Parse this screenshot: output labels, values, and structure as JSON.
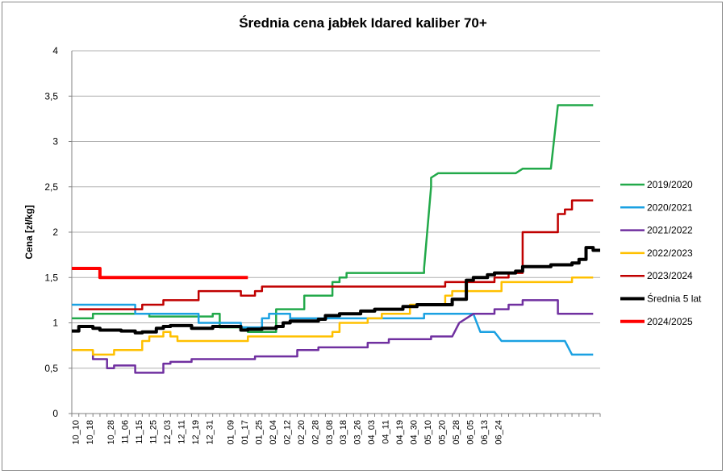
{
  "chart_data": {
    "type": "line",
    "title": "Średnia cena jabłek Idared kaliber 70+",
    "ylabel": "Cena [zł/kg]",
    "xlabel": "",
    "ylim": [
      0,
      4
    ],
    "yticks": [
      0,
      0.5,
      1,
      1.5,
      2,
      2.5,
      3,
      3.5,
      4
    ],
    "ytick_labels": [
      "0",
      "0,5",
      "1",
      "1,5",
      "2",
      "2,5",
      "3",
      "3,5",
      "4"
    ],
    "grid": "horizontal",
    "legend_position": "right",
    "x_count": 75,
    "xtick_labels": [
      "10_10",
      "10_18",
      "10_28",
      "11_06",
      "11_15",
      "11_25",
      "12_03",
      "12_11",
      "12_19",
      "12_31",
      "01_09",
      "01_17",
      "01_25",
      "02_04",
      "02_12",
      "02_20",
      "02_28",
      "03_08",
      "03_18",
      "03_26",
      "04_03",
      "04_11",
      "04_19",
      "04_30",
      "05_10",
      "05_20",
      "05_28",
      "06_05",
      "06_13",
      "06_24"
    ],
    "xtick_positions": [
      0,
      2,
      5,
      7,
      9,
      11,
      13,
      15,
      17,
      19,
      22,
      24,
      26,
      28,
      30,
      32,
      34,
      36,
      38,
      40,
      42,
      44,
      46,
      48,
      50,
      52,
      54,
      56,
      58,
      60
    ],
    "series": [
      {
        "name": "2019/2020",
        "color": "#22a94a",
        "width": 2.5,
        "points": [
          [
            0,
            1.05
          ],
          [
            3,
            1.05
          ],
          [
            3,
            1.1
          ],
          [
            11,
            1.1
          ],
          [
            11,
            1.07
          ],
          [
            20,
            1.07
          ],
          [
            20,
            1.1
          ],
          [
            21,
            1.1
          ],
          [
            21,
            0.95
          ],
          [
            25,
            0.95
          ],
          [
            25,
            0.9
          ],
          [
            29,
            0.9
          ],
          [
            29,
            1.15
          ],
          [
            33,
            1.15
          ],
          [
            33,
            1.3
          ],
          [
            37,
            1.3
          ],
          [
            37,
            1.45
          ],
          [
            38,
            1.45
          ],
          [
            38,
            1.5
          ],
          [
            39,
            1.5
          ],
          [
            39,
            1.55
          ],
          [
            50,
            1.55
          ],
          [
            50,
            1.6
          ],
          [
            51,
            2.5
          ],
          [
            51,
            2.6
          ],
          [
            52,
            2.65
          ],
          [
            63,
            2.65
          ],
          [
            64,
            2.7
          ],
          [
            68,
            2.7
          ],
          [
            69,
            3.4
          ],
          [
            74,
            3.4
          ]
        ]
      },
      {
        "name": "2020/2021",
        "color": "#1ba1e2",
        "width": 2.5,
        "points": [
          [
            0,
            1.2
          ],
          [
            9,
            1.2
          ],
          [
            9,
            1.1
          ],
          [
            18,
            1.1
          ],
          [
            18,
            1.0
          ],
          [
            24,
            1.0
          ],
          [
            24,
            0.95
          ],
          [
            27,
            0.95
          ],
          [
            27,
            1.05
          ],
          [
            28,
            1.05
          ],
          [
            28,
            1.1
          ],
          [
            31,
            1.1
          ],
          [
            31,
            1.05
          ],
          [
            50,
            1.05
          ],
          [
            50,
            1.1
          ],
          [
            57,
            1.1
          ],
          [
            58,
            0.9
          ],
          [
            60,
            0.9
          ],
          [
            61,
            0.8
          ],
          [
            70,
            0.8
          ],
          [
            71,
            0.65
          ],
          [
            74,
            0.65
          ]
        ]
      },
      {
        "name": "2021/2022",
        "color": "#7030a0",
        "width": 2.5,
        "points": [
          [
            3,
            0.7
          ],
          [
            3,
            0.6
          ],
          [
            5,
            0.6
          ],
          [
            5,
            0.5
          ],
          [
            6,
            0.5
          ],
          [
            6,
            0.53
          ],
          [
            9,
            0.53
          ],
          [
            9,
            0.45
          ],
          [
            13,
            0.45
          ],
          [
            13,
            0.55
          ],
          [
            14,
            0.55
          ],
          [
            14,
            0.57
          ],
          [
            17,
            0.57
          ],
          [
            17,
            0.6
          ],
          [
            26,
            0.6
          ],
          [
            26,
            0.63
          ],
          [
            32,
            0.63
          ],
          [
            32,
            0.7
          ],
          [
            35,
            0.7
          ],
          [
            35,
            0.73
          ],
          [
            42,
            0.73
          ],
          [
            42,
            0.78
          ],
          [
            45,
            0.78
          ],
          [
            45,
            0.82
          ],
          [
            51,
            0.82
          ],
          [
            51,
            0.85
          ],
          [
            54,
            0.85
          ],
          [
            55,
            1.0
          ],
          [
            56,
            1.05
          ],
          [
            57,
            1.1
          ],
          [
            60,
            1.1
          ],
          [
            60,
            1.15
          ],
          [
            62,
            1.15
          ],
          [
            62,
            1.2
          ],
          [
            64,
            1.2
          ],
          [
            64,
            1.25
          ],
          [
            69,
            1.25
          ],
          [
            69,
            1.1
          ],
          [
            74,
            1.1
          ]
        ]
      },
      {
        "name": "2022/2023",
        "color": "#ffc000",
        "width": 2.5,
        "points": [
          [
            0,
            0.7
          ],
          [
            3,
            0.7
          ],
          [
            3,
            0.65
          ],
          [
            6,
            0.65
          ],
          [
            6,
            0.7
          ],
          [
            10,
            0.7
          ],
          [
            10,
            0.8
          ],
          [
            11,
            0.8
          ],
          [
            11,
            0.85
          ],
          [
            13,
            0.85
          ],
          [
            13,
            0.9
          ],
          [
            14,
            0.9
          ],
          [
            14,
            0.85
          ],
          [
            15,
            0.85
          ],
          [
            15,
            0.8
          ],
          [
            25,
            0.8
          ],
          [
            25,
            0.85
          ],
          [
            37,
            0.85
          ],
          [
            37,
            0.9
          ],
          [
            38,
            0.9
          ],
          [
            38,
            1.0
          ],
          [
            42,
            1.0
          ],
          [
            42,
            1.05
          ],
          [
            44,
            1.05
          ],
          [
            44,
            1.1
          ],
          [
            48,
            1.1
          ],
          [
            48,
            1.2
          ],
          [
            53,
            1.2
          ],
          [
            53,
            1.3
          ],
          [
            54,
            1.3
          ],
          [
            54,
            1.35
          ],
          [
            61,
            1.35
          ],
          [
            61,
            1.45
          ],
          [
            71,
            1.45
          ],
          [
            71,
            1.5
          ],
          [
            74,
            1.5
          ]
        ]
      },
      {
        "name": "2023/2024",
        "color": "#c00000",
        "width": 2.5,
        "points": [
          [
            1,
            1.15
          ],
          [
            10,
            1.15
          ],
          [
            10,
            1.2
          ],
          [
            13,
            1.2
          ],
          [
            13,
            1.25
          ],
          [
            18,
            1.25
          ],
          [
            18,
            1.35
          ],
          [
            24,
            1.35
          ],
          [
            24,
            1.3
          ],
          [
            26,
            1.3
          ],
          [
            26,
            1.35
          ],
          [
            27,
            1.35
          ],
          [
            27,
            1.4
          ],
          [
            53,
            1.4
          ],
          [
            53,
            1.45
          ],
          [
            60,
            1.45
          ],
          [
            60,
            1.5
          ],
          [
            62,
            1.5
          ],
          [
            62,
            1.55
          ],
          [
            64,
            1.55
          ],
          [
            64,
            2.0
          ],
          [
            69,
            2.0
          ],
          [
            69,
            2.2
          ],
          [
            70,
            2.2
          ],
          [
            70,
            2.25
          ],
          [
            71,
            2.25
          ],
          [
            71,
            2.35
          ],
          [
            74,
            2.35
          ]
        ]
      },
      {
        "name": "Średnia 5 lat",
        "color": "#000000",
        "width": 4,
        "points": [
          [
            0,
            0.91
          ],
          [
            1,
            0.91
          ],
          [
            1,
            0.96
          ],
          [
            3,
            0.96
          ],
          [
            3,
            0.94
          ],
          [
            4,
            0.94
          ],
          [
            4,
            0.92
          ],
          [
            7,
            0.92
          ],
          [
            7,
            0.91
          ],
          [
            9,
            0.91
          ],
          [
            9,
            0.89
          ],
          [
            10,
            0.89
          ],
          [
            10,
            0.9
          ],
          [
            12,
            0.9
          ],
          [
            12,
            0.94
          ],
          [
            13,
            0.94
          ],
          [
            13,
            0.96
          ],
          [
            14,
            0.96
          ],
          [
            14,
            0.97
          ],
          [
            17,
            0.97
          ],
          [
            17,
            0.94
          ],
          [
            20,
            0.94
          ],
          [
            20,
            0.96
          ],
          [
            24,
            0.96
          ],
          [
            24,
            0.92
          ],
          [
            25,
            0.92
          ],
          [
            25,
            0.93
          ],
          [
            27,
            0.93
          ],
          [
            27,
            0.94
          ],
          [
            29,
            0.94
          ],
          [
            29,
            0.96
          ],
          [
            30,
            0.96
          ],
          [
            30,
            1.0
          ],
          [
            31,
            1.0
          ],
          [
            31,
            1.02
          ],
          [
            35,
            1.02
          ],
          [
            35,
            1.04
          ],
          [
            36,
            1.04
          ],
          [
            36,
            1.08
          ],
          [
            38,
            1.08
          ],
          [
            38,
            1.1
          ],
          [
            41,
            1.1
          ],
          [
            41,
            1.13
          ],
          [
            43,
            1.13
          ],
          [
            43,
            1.15
          ],
          [
            47,
            1.15
          ],
          [
            47,
            1.18
          ],
          [
            49,
            1.18
          ],
          [
            49,
            1.2
          ],
          [
            54,
            1.2
          ],
          [
            54,
            1.26
          ],
          [
            56,
            1.26
          ],
          [
            56,
            1.47
          ],
          [
            57,
            1.47
          ],
          [
            57,
            1.5
          ],
          [
            59,
            1.5
          ],
          [
            59,
            1.53
          ],
          [
            60,
            1.53
          ],
          [
            60,
            1.55
          ],
          [
            63,
            1.55
          ],
          [
            63,
            1.57
          ],
          [
            64,
            1.57
          ],
          [
            64,
            1.62
          ],
          [
            68,
            1.62
          ],
          [
            68,
            1.64
          ],
          [
            71,
            1.64
          ],
          [
            71,
            1.66
          ],
          [
            72,
            1.66
          ],
          [
            72,
            1.7
          ],
          [
            73,
            1.7
          ],
          [
            73,
            1.83
          ],
          [
            74,
            1.83
          ],
          [
            74,
            1.8
          ],
          [
            75,
            1.8
          ]
        ]
      },
      {
        "name": "2024/2025",
        "color": "#ff0000",
        "width": 4,
        "points": [
          [
            0,
            1.6
          ],
          [
            4,
            1.6
          ],
          [
            4,
            1.5
          ],
          [
            25,
            1.5
          ]
        ]
      }
    ]
  }
}
